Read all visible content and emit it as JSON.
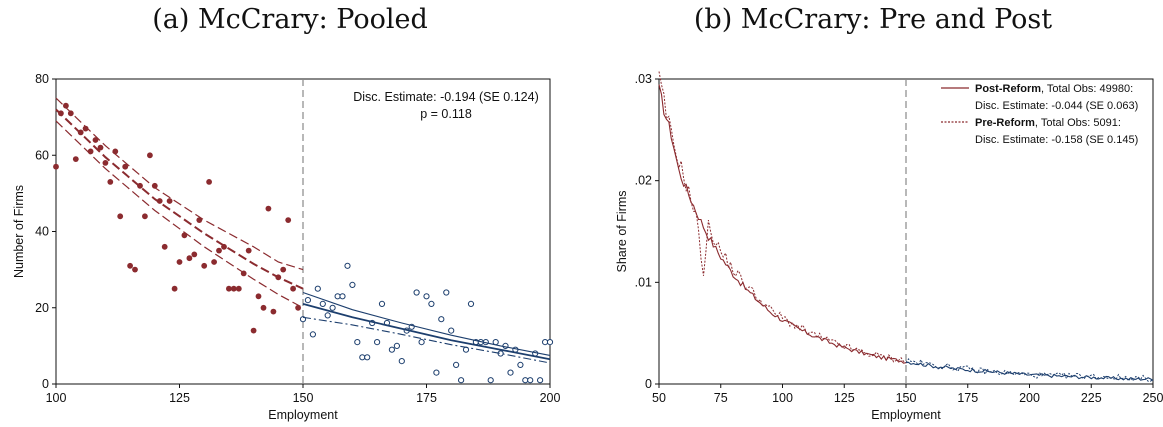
{
  "chart_data": [
    {
      "type": "scatter",
      "title": "(a) McCrary: Pooled",
      "xlabel": "Employment",
      "ylabel": "Number of Firms",
      "xlim": [
        100,
        200
      ],
      "ylim": [
        0,
        80
      ],
      "xticks": [
        100,
        125,
        150,
        175,
        200
      ],
      "yticks": [
        0,
        20,
        40,
        60,
        80
      ],
      "cutoff": 150,
      "annotation_line1": "Disc. Estimate: -0.194 (SE 0.124)",
      "annotation_line2": "p = 0.118",
      "colors": {
        "pre": "#8b2b2f",
        "post": "#1d3f6e",
        "cutoff": "#888888"
      },
      "points_left": [
        [
          100,
          57
        ],
        [
          101,
          71
        ],
        [
          102,
          73
        ],
        [
          103,
          71
        ],
        [
          104,
          59
        ],
        [
          105,
          66
        ],
        [
          106,
          67
        ],
        [
          107,
          61
        ],
        [
          108,
          64
        ],
        [
          109,
          62
        ],
        [
          110,
          58
        ],
        [
          111,
          53
        ],
        [
          112,
          61
        ],
        [
          113,
          44
        ],
        [
          114,
          57
        ],
        [
          115,
          31
        ],
        [
          116,
          30
        ],
        [
          117,
          52
        ],
        [
          118,
          44
        ],
        [
          119,
          60
        ],
        [
          120,
          52
        ],
        [
          121,
          48
        ],
        [
          122,
          36
        ],
        [
          123,
          48
        ],
        [
          124,
          25
        ],
        [
          125,
          32
        ],
        [
          126,
          39
        ],
        [
          127,
          33
        ],
        [
          128,
          34
        ],
        [
          129,
          43
        ],
        [
          130,
          31
        ],
        [
          131,
          53
        ],
        [
          132,
          32
        ],
        [
          133,
          35
        ],
        [
          134,
          36
        ],
        [
          135,
          25
        ],
        [
          136,
          25
        ],
        [
          137,
          25
        ],
        [
          138,
          29
        ],
        [
          139,
          35
        ],
        [
          140,
          14
        ],
        [
          141,
          23
        ],
        [
          142,
          20
        ],
        [
          143,
          46
        ],
        [
          144,
          19
        ],
        [
          145,
          28
        ],
        [
          146,
          30
        ],
        [
          147,
          43
        ],
        [
          148,
          25
        ],
        [
          149,
          20
        ]
      ],
      "points_right": [
        [
          150,
          17
        ],
        [
          151,
          22
        ],
        [
          152,
          13
        ],
        [
          153,
          25
        ],
        [
          154,
          21
        ],
        [
          155,
          18
        ],
        [
          156,
          20
        ],
        [
          157,
          23
        ],
        [
          158,
          23
        ],
        [
          159,
          31
        ],
        [
          160,
          26
        ],
        [
          161,
          11
        ],
        [
          162,
          7
        ],
        [
          163,
          7
        ],
        [
          164,
          16
        ],
        [
          165,
          11
        ],
        [
          166,
          21
        ],
        [
          167,
          16
        ],
        [
          168,
          9
        ],
        [
          169,
          10
        ],
        [
          170,
          6
        ],
        [
          171,
          14
        ],
        [
          172,
          15
        ],
        [
          173,
          24
        ],
        [
          174,
          11
        ],
        [
          175,
          23
        ],
        [
          176,
          21
        ],
        [
          177,
          3
        ],
        [
          178,
          17
        ],
        [
          179,
          24
        ],
        [
          180,
          14
        ],
        [
          181,
          5
        ],
        [
          182,
          1
        ],
        [
          183,
          9
        ],
        [
          184,
          21
        ],
        [
          185,
          11
        ],
        [
          186,
          11
        ],
        [
          187,
          11
        ],
        [
          188,
          1
        ],
        [
          189,
          11
        ],
        [
          190,
          8
        ],
        [
          191,
          10
        ],
        [
          192,
          3
        ],
        [
          193,
          9
        ],
        [
          194,
          5
        ],
        [
          195,
          1
        ],
        [
          196,
          1
        ],
        [
          197,
          8
        ],
        [
          198,
          1
        ],
        [
          199,
          11
        ],
        [
          200,
          11
        ]
      ],
      "fit_left": [
        [
          100,
          72
        ],
        [
          110,
          59.5
        ],
        [
          120,
          48.5
        ],
        [
          130,
          39.5
        ],
        [
          140,
          31.5
        ],
        [
          145,
          28
        ],
        [
          150,
          25
        ]
      ],
      "ci_left_upper": [
        [
          100,
          75
        ],
        [
          110,
          62.5
        ],
        [
          120,
          51.5
        ],
        [
          130,
          43
        ],
        [
          140,
          36
        ],
        [
          145,
          32
        ],
        [
          150,
          30
        ]
      ],
      "ci_left_lower": [
        [
          100,
          69
        ],
        [
          110,
          56.5
        ],
        [
          120,
          45.5
        ],
        [
          130,
          36
        ],
        [
          140,
          27.5
        ],
        [
          145,
          23.5
        ],
        [
          150,
          20
        ]
      ],
      "fit_right": [
        [
          150,
          21
        ],
        [
          160,
          17.5
        ],
        [
          170,
          14.5
        ],
        [
          180,
          11.5
        ],
        [
          190,
          9
        ],
        [
          200,
          6.5
        ]
      ],
      "ci_right_upper": [
        [
          150,
          24
        ],
        [
          160,
          19.5
        ],
        [
          170,
          16
        ],
        [
          180,
          12.8
        ],
        [
          190,
          10
        ],
        [
          200,
          7.5
        ]
      ],
      "ci_right_lower": [
        [
          150,
          17.5
        ],
        [
          160,
          15.5
        ],
        [
          170,
          13
        ],
        [
          180,
          10.3
        ],
        [
          190,
          8
        ],
        [
          200,
          5.5
        ]
      ]
    },
    {
      "type": "line",
      "title": "(b) McCrary: Pre and Post",
      "xlabel": "Employment",
      "ylabel": "Share of Firms",
      "xlim": [
        50,
        250
      ],
      "ylim": [
        0,
        0.03
      ],
      "xticks": [
        50,
        75,
        100,
        125,
        150,
        175,
        200,
        225,
        250
      ],
      "yticks": [
        0,
        0.01,
        0.02,
        0.03
      ],
      "ytick_labels": [
        "0",
        ".01",
        ".02",
        ".03"
      ],
      "cutoff": 150,
      "colors": {
        "pre": "#8b2b2f",
        "post": "#1d3f6e",
        "cutoff": "#888888"
      },
      "legend": [
        {
          "bold": "Post-Reform",
          "rest": ", Total Obs: 49980:",
          "line2": "Disc. Estimate: -0.044 (SE 0.063)",
          "style": "solid"
        },
        {
          "bold": "Pre-Reform",
          "rest": ", Total Obs: 5091:",
          "line2": "Disc. Estimate: -0.158 (SE 0.145)",
          "style": "dotted"
        }
      ],
      "post_anchors": [
        [
          50,
          0.029
        ],
        [
          52,
          0.027
        ],
        [
          55,
          0.0245
        ],
        [
          58,
          0.021
        ],
        [
          60,
          0.0198
        ],
        [
          65,
          0.017
        ],
        [
          70,
          0.0145
        ],
        [
          75,
          0.0125
        ],
        [
          80,
          0.0108
        ],
        [
          85,
          0.0094
        ],
        [
          90,
          0.0082
        ],
        [
          95,
          0.0071
        ],
        [
          100,
          0.0063
        ],
        [
          105,
          0.0056
        ],
        [
          110,
          0.005
        ],
        [
          115,
          0.0045
        ],
        [
          120,
          0.004
        ],
        [
          125,
          0.0036
        ],
        [
          130,
          0.0032
        ],
        [
          135,
          0.0029
        ],
        [
          140,
          0.0026
        ],
        [
          145,
          0.0024
        ],
        [
          150,
          0.0022
        ],
        [
          160,
          0.0018
        ],
        [
          170,
          0.0015
        ],
        [
          180,
          0.0013
        ],
        [
          190,
          0.0011
        ],
        [
          200,
          0.0009
        ],
        [
          210,
          0.0008
        ],
        [
          220,
          0.0007
        ],
        [
          230,
          0.0006
        ],
        [
          240,
          0.0005
        ],
        [
          250,
          0.0005
        ]
      ],
      "pre_anchors": [
        [
          50,
          0.03
        ],
        [
          53,
          0.0265
        ],
        [
          56,
          0.0235
        ],
        [
          60,
          0.0205
        ],
        [
          65,
          0.0165
        ],
        [
          68,
          0.011
        ],
        [
          70,
          0.0155
        ],
        [
          75,
          0.013
        ],
        [
          80,
          0.0113
        ],
        [
          85,
          0.0098
        ],
        [
          90,
          0.0085
        ],
        [
          95,
          0.0073
        ],
        [
          100,
          0.0065
        ],
        [
          105,
          0.0058
        ],
        [
          110,
          0.0051
        ],
        [
          115,
          0.0046
        ],
        [
          120,
          0.0041
        ],
        [
          125,
          0.0037
        ],
        [
          130,
          0.0033
        ],
        [
          135,
          0.003
        ],
        [
          140,
          0.0027
        ],
        [
          145,
          0.0025
        ],
        [
          150,
          0.0023
        ],
        [
          160,
          0.0019
        ],
        [
          170,
          0.0016
        ],
        [
          180,
          0.0013
        ],
        [
          190,
          0.0011
        ],
        [
          200,
          0.0009
        ],
        [
          210,
          0.0008
        ],
        [
          220,
          0.0008
        ],
        [
          230,
          0.0007
        ],
        [
          240,
          0.0006
        ],
        [
          250,
          0.0005
        ]
      ]
    }
  ]
}
